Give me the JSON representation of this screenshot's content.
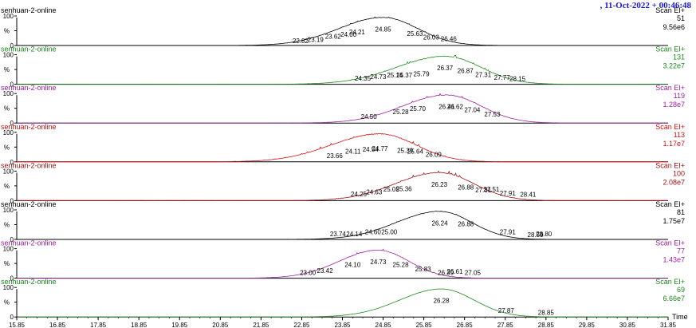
{
  "header": {
    "date_label": ", 11-Oct-2022 + 00:46:48"
  },
  "chart_data": {
    "type": "line",
    "x_axis": {
      "label": "Time",
      "range": [
        15.85,
        31.85
      ],
      "ticks": [
        "15.85",
        "16.85",
        "17.85",
        "18.85",
        "19.85",
        "20.85",
        "21.85",
        "22.85",
        "23.85",
        "24.85",
        "25.85",
        "26.85",
        "27.85",
        "28.85",
        "29.85",
        "30.85",
        "31.85"
      ]
    },
    "y_axis": {
      "label": "%",
      "ticks": [
        "0",
        "50",
        "100"
      ],
      "range": [
        0,
        100
      ]
    },
    "panels": [
      {
        "id": "p1",
        "name": "senhuan-2-online",
        "scan": "Scan EI+",
        "mass": "51",
        "intensity": "9.56e6",
        "color": "#000000",
        "peak": 24.85,
        "width": 0.9,
        "skew": 0.2,
        "noise": 0.3,
        "labels": [
          {
            "rt": "22.82",
            "v": 5
          },
          {
            "rt": "23.19",
            "v": 10
          },
          {
            "rt": "23.62",
            "v": 20
          },
          {
            "rt": "24.00",
            "v": 27
          },
          {
            "rt": "24.21",
            "v": 35
          },
          {
            "rt": "24.85",
            "v": 45
          },
          {
            "rt": "25.63",
            "v": 30
          },
          {
            "rt": "26.03",
            "v": 18
          },
          {
            "rt": "26.46",
            "v": 12
          }
        ]
      },
      {
        "id": "p2",
        "name": "senhuan-2-online",
        "scan": "Scan EI+",
        "mass": "131",
        "intensity": "3.22e7",
        "color": "#1a8a1a",
        "peak": 26.37,
        "width": 0.95,
        "skew": 0.25,
        "noise": 0.6,
        "labels": [
          {
            "rt": "24.35",
            "v": 10
          },
          {
            "rt": "24.73",
            "v": 15
          },
          {
            "rt": "25.14",
            "v": 20
          },
          {
            "rt": "25.37",
            "v": 20
          },
          {
            "rt": "25.79",
            "v": 25
          },
          {
            "rt": "26.37",
            "v": 45
          },
          {
            "rt": "26.87",
            "v": 35
          },
          {
            "rt": "27.31",
            "v": 22
          },
          {
            "rt": "27.77",
            "v": 12
          },
          {
            "rt": "28.15",
            "v": 8
          }
        ]
      },
      {
        "id": "p3",
        "name": "senhuan-2-online",
        "scan": "Scan EI+",
        "mass": "119",
        "intensity": "1.28e7",
        "color": "#a020a0",
        "peak": 26.41,
        "width": 0.9,
        "skew": 0.2,
        "noise": 0.5,
        "labels": [
          {
            "rt": "24.50",
            "v": 12
          },
          {
            "rt": "25.28",
            "v": 28
          },
          {
            "rt": "25.70",
            "v": 38
          },
          {
            "rt": "26.41",
            "v": 45
          },
          {
            "rt": "26.62",
            "v": 45
          },
          {
            "rt": "27.04",
            "v": 35
          },
          {
            "rt": "27.53",
            "v": 20
          }
        ]
      },
      {
        "id": "p4",
        "name": "senhuan-2-online",
        "scan": "Scan EI+",
        "mass": "113",
        "intensity": "1.17e7",
        "color": "#d01010",
        "peak": 24.77,
        "width": 0.95,
        "skew": 0.25,
        "noise": 0.8,
        "labels": [
          {
            "rt": "23.66",
            "v": 10
          },
          {
            "rt": "24.11",
            "v": 25
          },
          {
            "rt": "24.54",
            "v": 32
          },
          {
            "rt": "24.77",
            "v": 35
          },
          {
            "rt": "25.39",
            "v": 28
          },
          {
            "rt": "25.64",
            "v": 25
          },
          {
            "rt": "26.09",
            "v": 15
          }
        ]
      },
      {
        "id": "p5",
        "name": "senhuan-2-online",
        "scan": "Scan EI+",
        "mass": "100",
        "intensity": "2.08e7",
        "color": "#a01010",
        "peak": 26.23,
        "width": 0.9,
        "skew": 0.2,
        "noise": 0.6,
        "labels": [
          {
            "rt": "24.25",
            "v": 12
          },
          {
            "rt": "24.63",
            "v": 18
          },
          {
            "rt": "25.05",
            "v": 28
          },
          {
            "rt": "25.36",
            "v": 30
          },
          {
            "rt": "26.23",
            "v": 45
          },
          {
            "rt": "26.88",
            "v": 35
          },
          {
            "rt": "27.31",
            "v": 25
          },
          {
            "rt": "27.51",
            "v": 28
          },
          {
            "rt": "27.91",
            "v": 15
          },
          {
            "rt": "28.41",
            "v": 10
          }
        ]
      },
      {
        "id": "p6",
        "name": "senhuan-2-online",
        "scan": "Scan EI+",
        "mass": "81",
        "intensity": "1.75e7",
        "color": "#000000",
        "peak": 26.24,
        "width": 0.85,
        "skew": 0.25,
        "noise": 0.25,
        "labels": [
          {
            "rt": "23.74",
            "v": 8
          },
          {
            "rt": "24.14",
            "v": 8
          },
          {
            "rt": "24.60",
            "v": 15
          },
          {
            "rt": "25.00",
            "v": 15
          },
          {
            "rt": "26.24",
            "v": 45
          },
          {
            "rt": "26.88",
            "v": 42
          },
          {
            "rt": "27.91",
            "v": 15
          },
          {
            "rt": "28.59",
            "v": 5
          },
          {
            "rt": "28.80",
            "v": 8
          }
        ]
      },
      {
        "id": "p7",
        "name": "senhuan-2-online",
        "scan": "Scan EI+",
        "mass": "77",
        "intensity": "1.43e7",
        "color": "#a020a0",
        "peak": 24.73,
        "width": 0.8,
        "skew": 0.2,
        "noise": 0.5,
        "labels": [
          {
            "rt": "23.00",
            "v": 8
          },
          {
            "rt": "23.42",
            "v": 15
          },
          {
            "rt": "24.10",
            "v": 35
          },
          {
            "rt": "24.73",
            "v": 45
          },
          {
            "rt": "25.28",
            "v": 35
          },
          {
            "rt": "25.83",
            "v": 20
          },
          {
            "rt": "26.39",
            "v": 8
          },
          {
            "rt": "26.61",
            "v": 12
          },
          {
            "rt": "27.05",
            "v": 8
          }
        ]
      },
      {
        "id": "p8",
        "name": "senhuan-2-online",
        "scan": "Scan EI+",
        "mass": "69",
        "intensity": "6.66e7",
        "color": "#1a8a1a",
        "peak": 26.28,
        "width": 0.85,
        "skew": 0.2,
        "noise": 0.05,
        "labels": [
          {
            "rt": "26.28",
            "v": 45
          },
          {
            "rt": "27.87",
            "v": 12
          },
          {
            "rt": "28.85",
            "v": 5
          }
        ]
      }
    ]
  }
}
